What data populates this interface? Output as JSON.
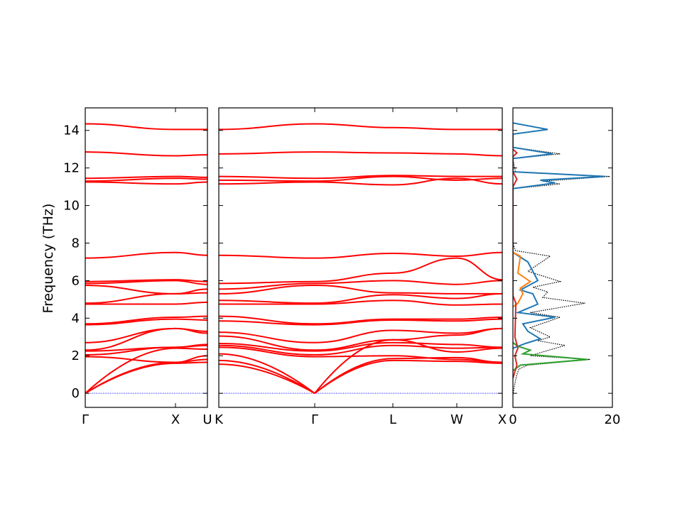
{
  "chart_data": {
    "type": "line",
    "ylabel": "Frequency (THz)",
    "ylim": [
      -0.75,
      15.2
    ],
    "yticks": [
      0,
      2,
      4,
      6,
      8,
      10,
      12,
      14
    ],
    "band_color": "#ff0000",
    "zero_line_color": "#0000ff",
    "panels": [
      {
        "id": "gamma-x-u",
        "xticks": [
          "Γ",
          "X",
          "U"
        ],
        "segments": [
          {
            "from": "Γ",
            "to": "X",
            "bands": [
              [
                0.0,
                1.6
              ],
              [
                0.0,
                1.65
              ],
              [
                0.0,
                2.4
              ],
              [
                1.95,
                1.65
              ],
              [
                2.05,
                2.45
              ],
              [
                2.25,
                2.45
              ],
              [
                2.3,
                3.45
              ],
              [
                2.7,
                3.45
              ],
              [
                3.65,
                3.95
              ],
              [
                3.7,
                4.05
              ],
              [
                4.75,
                4.75
              ],
              [
                4.8,
                5.3
              ],
              [
                5.75,
                5.3
              ],
              [
                5.85,
                6.0
              ],
              [
                5.95,
                6.05
              ],
              [
                7.2,
                7.5
              ],
              [
                11.25,
                11.15
              ],
              [
                11.3,
                11.45
              ],
              [
                11.45,
                11.55
              ],
              [
                12.85,
                12.65
              ],
              [
                14.35,
                14.05
              ]
            ]
          },
          {
            "from": "X",
            "to": "U",
            "bands": [
              [
                1.6,
                1.65
              ],
              [
                1.65,
                1.8
              ],
              [
                2.4,
                2.35
              ],
              [
                1.65,
                2.0
              ],
              [
                2.45,
                2.55
              ],
              [
                2.45,
                2.6
              ],
              [
                3.45,
                3.2
              ],
              [
                3.45,
                3.3
              ],
              [
                3.95,
                3.9
              ],
              [
                4.05,
                4.1
              ],
              [
                4.75,
                4.85
              ],
              [
                5.3,
                5.35
              ],
              [
                5.3,
                5.55
              ],
              [
                6.0,
                5.8
              ],
              [
                6.05,
                5.95
              ],
              [
                7.5,
                7.35
              ],
              [
                11.15,
                11.25
              ],
              [
                11.45,
                11.4
              ],
              [
                11.55,
                11.5
              ],
              [
                12.65,
                12.7
              ],
              [
                14.05,
                14.05
              ]
            ]
          }
        ]
      },
      {
        "id": "k-gamma-l-w-x",
        "xticks": [
          "K",
          "Γ",
          "L",
          "W",
          "X"
        ],
        "segments": [
          {
            "from": "K",
            "to": "Γ",
            "bands": [
              [
                1.55,
                0.0
              ],
              [
                1.75,
                0.0
              ],
              [
                2.1,
                0.0
              ],
              [
                2.45,
                1.95
              ],
              [
                2.55,
                2.05
              ],
              [
                2.65,
                2.25
              ],
              [
                3.05,
                2.3
              ],
              [
                3.25,
                2.7
              ],
              [
                3.85,
                3.65
              ],
              [
                4.1,
                3.7
              ],
              [
                4.75,
                4.75
              ],
              [
                4.95,
                4.8
              ],
              [
                5.3,
                5.75
              ],
              [
                5.55,
                5.85
              ],
              [
                5.85,
                5.95
              ],
              [
                7.35,
                7.2
              ],
              [
                11.15,
                11.25
              ],
              [
                11.35,
                11.3
              ],
              [
                11.55,
                11.45
              ],
              [
                12.75,
                12.85
              ],
              [
                14.05,
                14.35
              ]
            ]
          },
          {
            "from": "Γ",
            "to": "L",
            "bands": [
              [
                0.0,
                1.75
              ],
              [
                0.0,
                1.85
              ],
              [
                0.0,
                2.85
              ],
              [
                1.95,
                2.0
              ],
              [
                2.05,
                2.55
              ],
              [
                2.25,
                2.7
              ],
              [
                2.3,
                2.85
              ],
              [
                2.7,
                3.35
              ],
              [
                3.65,
                3.9
              ],
              [
                3.7,
                3.95
              ],
              [
                4.75,
                4.95
              ],
              [
                4.8,
                5.25
              ],
              [
                5.75,
                5.35
              ],
              [
                5.85,
                6.0
              ],
              [
                5.95,
                6.4
              ],
              [
                7.2,
                7.45
              ],
              [
                11.25,
                11.1
              ],
              [
                11.3,
                11.55
              ],
              [
                11.45,
                11.6
              ],
              [
                12.85,
                12.8
              ],
              [
                14.35,
                14.15
              ]
            ]
          },
          {
            "from": "L",
            "to": "W",
            "bands": [
              [
                1.75,
                1.7
              ],
              [
                1.85,
                1.9
              ],
              [
                2.85,
                2.2
              ],
              [
                2.0,
                1.8
              ],
              [
                2.55,
                2.4
              ],
              [
                2.7,
                2.6
              ],
              [
                2.85,
                3.1
              ],
              [
                3.35,
                3.2
              ],
              [
                3.9,
                3.85
              ],
              [
                3.95,
                3.95
              ],
              [
                4.95,
                4.7
              ],
              [
                5.25,
                5.05
              ],
              [
                5.35,
                5.3
              ],
              [
                6.0,
                5.8
              ],
              [
                6.4,
                7.2
              ],
              [
                7.45,
                7.3
              ],
              [
                11.1,
                11.45
              ],
              [
                11.55,
                11.35
              ],
              [
                11.6,
                11.55
              ],
              [
                12.8,
                12.75
              ],
              [
                14.15,
                14.05
              ]
            ]
          },
          {
            "from": "W",
            "to": "X",
            "bands": [
              [
                1.7,
                1.6
              ],
              [
                1.9,
                1.65
              ],
              [
                2.2,
                2.4
              ],
              [
                1.8,
                1.65
              ],
              [
                2.4,
                2.45
              ],
              [
                2.6,
                2.45
              ],
              [
                3.1,
                3.45
              ],
              [
                3.2,
                3.45
              ],
              [
                3.85,
                3.95
              ],
              [
                3.95,
                4.05
              ],
              [
                4.7,
                4.75
              ],
              [
                5.05,
                5.3
              ],
              [
                5.3,
                5.3
              ],
              [
                5.8,
                6.0
              ],
              [
                7.2,
                6.05
              ],
              [
                7.3,
                7.5
              ],
              [
                11.45,
                11.15
              ],
              [
                11.35,
                11.45
              ],
              [
                11.55,
                11.55
              ],
              [
                12.75,
                12.65
              ],
              [
                14.05,
                14.05
              ]
            ]
          }
        ]
      },
      {
        "id": "dos",
        "xlim": [
          0,
          20
        ],
        "xticks": [
          "0",
          "20"
        ],
        "series": [
          {
            "color": "#000000",
            "style": "dotted",
            "points": [
              [
                0,
                -0.1
              ],
              [
                0.3,
                0.4
              ],
              [
                0.7,
                0.9
              ],
              [
                1.2,
                1.3
              ],
              [
                3.0,
                1.5
              ],
              [
                15.5,
                1.8
              ],
              [
                3.5,
                2.0
              ],
              [
                6.0,
                2.2
              ],
              [
                10.5,
                2.55
              ],
              [
                5.0,
                2.8
              ],
              [
                7.5,
                3.0
              ],
              [
                3.5,
                3.5
              ],
              [
                9.5,
                4.05
              ],
              [
                3.5,
                4.3
              ],
              [
                14.5,
                4.8
              ],
              [
                6.0,
                5.1
              ],
              [
                7.0,
                5.4
              ],
              [
                4.0,
                5.65
              ],
              [
                9.5,
                5.95
              ],
              [
                3.0,
                6.5
              ],
              [
                7.5,
                7.3
              ],
              [
                0.5,
                7.6
              ],
              [
                0,
                8.0
              ],
              [
                0,
                10.9
              ],
              [
                9.5,
                11.15
              ],
              [
                6.0,
                11.3
              ],
              [
                19.5,
                11.55
              ],
              [
                0.5,
                11.8
              ],
              [
                0,
                12.5
              ],
              [
                9.5,
                12.75
              ],
              [
                0,
                13.1
              ],
              [
                0,
                13.8
              ],
              [
                7.0,
                14.05
              ],
              [
                0,
                14.4
              ]
            ]
          },
          {
            "color": "#1f77b4",
            "style": "solid",
            "points": [
              [
                0,
                2.4
              ],
              [
                2.5,
                2.65
              ],
              [
                5.5,
                2.9
              ],
              [
                3.0,
                3.3
              ],
              [
                2.0,
                3.7
              ],
              [
                8.5,
                4.05
              ],
              [
                1.0,
                4.3
              ],
              [
                5.0,
                4.75
              ],
              [
                4.0,
                5.3
              ],
              [
                1.5,
                5.5
              ],
              [
                5.0,
                6.0
              ],
              [
                3.0,
                7.0
              ],
              [
                0,
                7.5
              ],
              [
                0,
                10.9
              ],
              [
                8.5,
                11.2
              ],
              [
                5.5,
                11.35
              ],
              [
                18.5,
                11.55
              ],
              [
                0,
                11.8
              ],
              [
                0,
                12.5
              ],
              [
                8.0,
                12.75
              ],
              [
                0,
                13.1
              ],
              [
                0,
                13.8
              ],
              [
                7.0,
                14.05
              ],
              [
                0,
                14.4
              ]
            ]
          },
          {
            "color": "#ff7f0e",
            "style": "solid",
            "points": [
              [
                0,
                4.6
              ],
              [
                1.0,
                4.8
              ],
              [
                2.0,
                5.3
              ],
              [
                1.5,
                5.6
              ],
              [
                3.5,
                5.95
              ],
              [
                1.0,
                6.4
              ],
              [
                1.5,
                7.3
              ],
              [
                0,
                7.5
              ]
            ]
          },
          {
            "color": "#2ca02c",
            "style": "solid",
            "points": [
              [
                0,
                1.2
              ],
              [
                1.5,
                1.5
              ],
              [
                15.0,
                1.8
              ],
              [
                2.0,
                2.1
              ],
              [
                3.5,
                2.3
              ],
              [
                1.0,
                2.5
              ],
              [
                0,
                2.7
              ]
            ]
          },
          {
            "color": "#d62728",
            "style": "solid",
            "points": [
              [
                0,
                0.8
              ],
              [
                0.8,
                1.5
              ],
              [
                0.4,
                2.0
              ],
              [
                1.0,
                2.4
              ],
              [
                0.4,
                3.0
              ],
              [
                0.6,
                4.8
              ],
              [
                0,
                5.2
              ],
              [
                0,
                11.0
              ],
              [
                0.8,
                11.4
              ],
              [
                0,
                11.8
              ],
              [
                0,
                12.6
              ],
              [
                0.8,
                12.8
              ],
              [
                0,
                13.0
              ]
            ]
          }
        ]
      }
    ]
  }
}
